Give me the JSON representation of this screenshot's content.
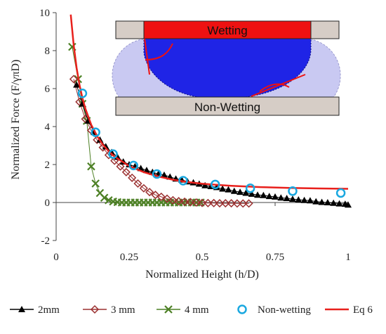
{
  "chart_data": {
    "type": "line",
    "xlabel": "Normalized Height (h/D)",
    "ylabel": "Normalized  Force (F/γπD)",
    "xlim": [
      0,
      1
    ],
    "ylim": [
      -2,
      10
    ],
    "x_ticks": [
      "0",
      "0.25",
      "0.5",
      "0.75",
      "1"
    ],
    "y_ticks": [
      "-2",
      "0",
      "2",
      "4",
      "6",
      "8",
      "10"
    ],
    "grid": false,
    "legend_position": "bottom",
    "colors": {
      "2mm": "#000000",
      "3mm": "#9b3030",
      "4mm": "#4d8025",
      "nonwetting": "#1aa8e0",
      "eq6": "#e8201c"
    },
    "series": [
      {
        "name": "2mm",
        "marker": "triangle",
        "x": [
          0.07,
          0.09,
          0.11,
          0.13,
          0.15,
          0.17,
          0.19,
          0.21,
          0.23,
          0.25,
          0.27,
          0.29,
          0.31,
          0.33,
          0.35,
          0.37,
          0.39,
          0.41,
          0.43,
          0.45,
          0.47,
          0.49,
          0.51,
          0.53,
          0.55,
          0.57,
          0.59,
          0.61,
          0.63,
          0.65,
          0.67,
          0.69,
          0.71,
          0.73,
          0.75,
          0.77,
          0.79,
          0.81,
          0.83,
          0.85,
          0.87,
          0.89,
          0.91,
          0.93,
          0.95,
          0.97,
          0.99,
          1.0
        ],
        "values": [
          6.2,
          5.2,
          4.3,
          3.7,
          3.3,
          2.95,
          2.65,
          2.4,
          2.15,
          2.0,
          1.9,
          1.8,
          1.7,
          1.6,
          1.5,
          1.45,
          1.35,
          1.25,
          1.2,
          1.1,
          1.05,
          0.98,
          0.9,
          0.85,
          0.8,
          0.72,
          0.68,
          0.6,
          0.55,
          0.5,
          0.45,
          0.4,
          0.38,
          0.33,
          0.3,
          0.25,
          0.22,
          0.18,
          0.15,
          0.12,
          0.1,
          0.05,
          0.02,
          0.0,
          -0.03,
          -0.06,
          -0.08,
          -0.12
        ]
      },
      {
        "name": "3 mm",
        "marker": "diamond",
        "x": [
          0.06,
          0.08,
          0.1,
          0.12,
          0.14,
          0.16,
          0.18,
          0.2,
          0.22,
          0.24,
          0.26,
          0.28,
          0.3,
          0.32,
          0.34,
          0.36,
          0.38,
          0.4,
          0.42,
          0.44,
          0.46,
          0.48,
          0.5,
          0.52,
          0.54,
          0.56,
          0.58,
          0.6,
          0.62,
          0.64,
          0.66
        ],
        "values": [
          6.5,
          5.3,
          4.4,
          3.8,
          3.3,
          2.9,
          2.5,
          2.2,
          1.9,
          1.6,
          1.3,
          1.0,
          0.75,
          0.55,
          0.4,
          0.3,
          0.2,
          0.12,
          0.07,
          0.04,
          0.02,
          0.0,
          -0.02,
          -0.03,
          -0.03,
          -0.04,
          -0.04,
          -0.04,
          -0.05,
          -0.05,
          -0.05
        ]
      },
      {
        "name": "4 mm",
        "marker": "x",
        "x": [
          0.055,
          0.075,
          0.09,
          0.105,
          0.12,
          0.135,
          0.15,
          0.165,
          0.18,
          0.195,
          0.21,
          0.225,
          0.24,
          0.255,
          0.27,
          0.285,
          0.3,
          0.315,
          0.33,
          0.345,
          0.36,
          0.375,
          0.39,
          0.405,
          0.42,
          0.435,
          0.45,
          0.465,
          0.48,
          0.495
        ],
        "values": [
          8.2,
          6.5,
          5.2,
          4.3,
          1.9,
          1.0,
          0.5,
          0.25,
          0.12,
          0.05,
          0.02,
          0.0,
          0.0,
          0.0,
          0.0,
          0.0,
          0.0,
          0.0,
          0.0,
          0.0,
          0.0,
          0.0,
          0.0,
          0.0,
          0.0,
          0.0,
          0.0,
          0.0,
          0.0,
          0.0
        ]
      },
      {
        "name": "Non-wetting",
        "marker": "circle",
        "x": [
          0.09,
          0.135,
          0.195,
          0.265,
          0.345,
          0.435,
          0.545,
          0.665,
          0.81,
          0.975
        ],
        "values": [
          5.75,
          3.7,
          2.55,
          1.95,
          1.5,
          1.15,
          0.95,
          0.75,
          0.6,
          0.5
        ]
      },
      {
        "name": "Eq 6",
        "marker": "line",
        "x": [
          0.05,
          0.06,
          0.07,
          0.08,
          0.09,
          0.1,
          0.12,
          0.14,
          0.16,
          0.18,
          0.2,
          0.25,
          0.3,
          0.35,
          0.4,
          0.45,
          0.5,
          0.55,
          0.6,
          0.7,
          0.8,
          0.9,
          1.0
        ],
        "values": [
          9.9,
          8.3,
          7.1,
          6.2,
          5.5,
          4.95,
          4.1,
          3.5,
          3.05,
          2.7,
          2.42,
          1.92,
          1.6,
          1.37,
          1.2,
          1.08,
          0.99,
          0.93,
          0.88,
          0.81,
          0.77,
          0.74,
          0.72
        ]
      }
    ]
  },
  "inset": {
    "top_label": "Wetting",
    "bottom_label": "Non-Wetting"
  }
}
